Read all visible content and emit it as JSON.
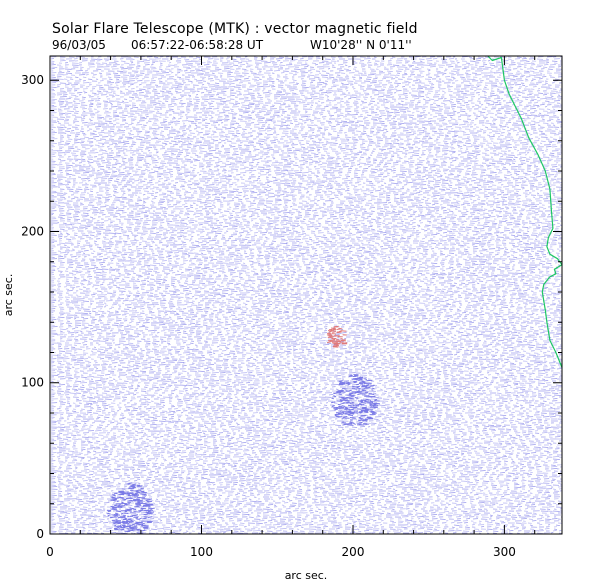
{
  "chart_data": {
    "type": "heatmap",
    "title": "Solar Flare Telescope (MTK) : vector magnetic field",
    "subtitle_date": "96/03/05",
    "subtitle_time": "06:57:22-06:58:28 UT",
    "subtitle_position": "W10'28''  N 0'11''",
    "xlabel": "arc sec.",
    "ylabel": "arc sec.",
    "xlim": [
      0,
      338
    ],
    "ylim": [
      0,
      316
    ],
    "xticks": [
      0,
      100,
      200,
      300
    ],
    "yticks": [
      0,
      100,
      200,
      300
    ],
    "xtick_labels": [
      "0",
      "100",
      "200",
      "300"
    ],
    "ytick_labels": [
      "0",
      "100",
      "200",
      "300"
    ],
    "grid": false,
    "colors": {
      "vectors": "#7a7ae6",
      "vectors_light": "#b4b4f2",
      "highlight": "#e07a7a",
      "limb": "#1ec864",
      "limb_dark": "#1e8c8c"
    },
    "regions": [
      {
        "label": "strong field patch",
        "x": 200,
        "y": 88,
        "color": "blue"
      },
      {
        "label": "small red patch",
        "x": 188,
        "y": 130,
        "color": "red"
      },
      {
        "label": "lower-left patch",
        "x": 52,
        "y": 16,
        "color": "blue"
      }
    ],
    "limb_curve": [
      [
        289,
        316
      ],
      [
        292,
        313
      ],
      [
        298,
        315
      ],
      [
        300,
        300
      ],
      [
        303,
        291
      ],
      [
        307,
        283
      ],
      [
        311,
        275
      ],
      [
        316,
        262
      ],
      [
        322,
        251
      ],
      [
        327,
        240
      ],
      [
        330,
        228
      ],
      [
        331,
        214
      ],
      [
        332,
        202
      ],
      [
        329,
        196
      ],
      [
        328,
        190
      ],
      [
        330,
        185
      ],
      [
        335,
        182
      ],
      [
        338,
        178
      ],
      [
        333,
        175
      ],
      [
        334,
        172
      ],
      [
        330,
        170
      ],
      [
        326,
        165
      ],
      [
        325,
        160
      ],
      [
        327,
        148
      ],
      [
        328,
        140
      ],
      [
        330,
        128
      ],
      [
        334,
        120
      ],
      [
        338,
        110
      ]
    ]
  }
}
